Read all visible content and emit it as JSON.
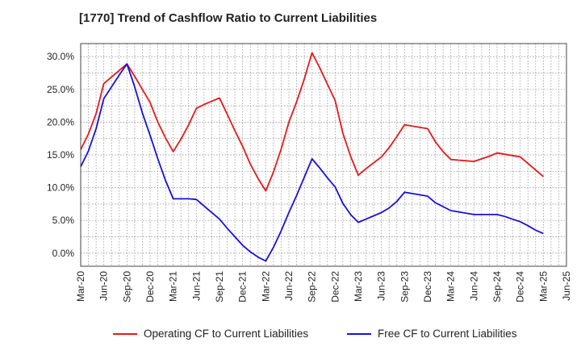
{
  "chart_data": {
    "type": "line",
    "title": "[1770]  Trend of Cashflow Ratio to Current Liabilities",
    "xlabel": "",
    "ylabel": "",
    "ylim": [
      -2,
      32
    ],
    "yticks": [
      "0.0%",
      "5.0%",
      "10.0%",
      "15.0%",
      "20.0%",
      "25.0%",
      "30.0%"
    ],
    "ytick_values": [
      0,
      5,
      10,
      15,
      20,
      25,
      30
    ],
    "x_tick_labels": [
      "Mar-20",
      "Jun-20",
      "Sep-20",
      "Dec-20",
      "Mar-21",
      "Jun-21",
      "Sep-21",
      "Dec-21",
      "Mar-22",
      "Jun-22",
      "Sep-22",
      "Dec-22",
      "Mar-23",
      "Jun-23",
      "Sep-23",
      "Dec-23",
      "Mar-24",
      "Jun-24",
      "Sep-24",
      "Dec-24",
      "Mar-25",
      "Jun-25"
    ],
    "grid": true,
    "legend_position": "bottom",
    "x": [
      "Mar-20",
      "Apr-20",
      "May-20",
      "Jun-20",
      "Jul-20",
      "Aug-20",
      "Sep-20",
      "Oct-20",
      "Nov-20",
      "Dec-20",
      "Jan-21",
      "Feb-21",
      "Mar-21",
      "Apr-21",
      "May-21",
      "Jun-21",
      "Jul-21",
      "Aug-21",
      "Sep-21",
      "Oct-21",
      "Nov-21",
      "Dec-21",
      "Jan-22",
      "Feb-22",
      "Mar-22",
      "Apr-22",
      "May-22",
      "Jun-22",
      "Jul-22",
      "Aug-22",
      "Sep-22",
      "Oct-22",
      "Nov-22",
      "Dec-22",
      "Jan-23",
      "Feb-23",
      "Mar-23",
      "Apr-23",
      "May-23",
      "Jun-23",
      "Jul-23",
      "Aug-23",
      "Sep-23",
      "Oct-23",
      "Nov-23",
      "Dec-23",
      "Jan-24",
      "Feb-24",
      "Mar-24",
      "Apr-24",
      "May-24",
      "Jun-24",
      "Jul-24",
      "Aug-24",
      "Sep-24",
      "Oct-24",
      "Nov-24",
      "Dec-24",
      "Jan-25",
      "Feb-25",
      "Mar-25"
    ],
    "series": [
      {
        "name": "Operating CF to Current Liabilities",
        "color": "#e31a1c",
        "values": [
          15.8,
          18.2,
          21.3,
          25.9,
          26.9,
          27.9,
          28.9,
          27.0,
          25.0,
          23.0,
          20.0,
          17.6,
          15.5,
          17.4,
          19.6,
          22.1,
          22.7,
          23.2,
          23.7,
          21.2,
          18.7,
          16.3,
          13.6,
          11.4,
          9.5,
          12.4,
          15.9,
          20.0,
          23.1,
          26.6,
          30.6,
          28.3,
          25.8,
          23.3,
          18.3,
          14.8,
          11.9,
          12.9,
          13.8,
          14.7,
          16.1,
          17.8,
          19.6,
          19.4,
          19.2,
          19.0,
          17.0,
          15.5,
          14.3,
          14.2,
          14.1,
          14.0,
          14.4,
          14.8,
          15.3,
          15.1,
          14.9,
          14.7,
          13.7,
          12.7,
          11.7
        ]
      },
      {
        "name": "Free CF to Current Liabilities",
        "color": "#1a10d8",
        "values": [
          13.2,
          15.6,
          19.0,
          23.6,
          25.4,
          27.2,
          28.9,
          25.4,
          21.4,
          18.0,
          14.4,
          11.1,
          8.3,
          8.3,
          8.3,
          8.2,
          7.2,
          6.2,
          5.2,
          3.8,
          2.5,
          1.2,
          0.2,
          -0.6,
          -1.2,
          0.9,
          3.4,
          6.2,
          8.8,
          11.6,
          14.4,
          13.0,
          11.5,
          10.1,
          7.6,
          5.9,
          4.7,
          5.2,
          5.7,
          6.2,
          6.9,
          7.9,
          9.3,
          9.1,
          8.9,
          8.7,
          7.7,
          7.1,
          6.5,
          6.3,
          6.1,
          5.9,
          5.9,
          5.9,
          5.9,
          5.6,
          5.2,
          4.8,
          4.2,
          3.5,
          3.0
        ]
      }
    ]
  }
}
